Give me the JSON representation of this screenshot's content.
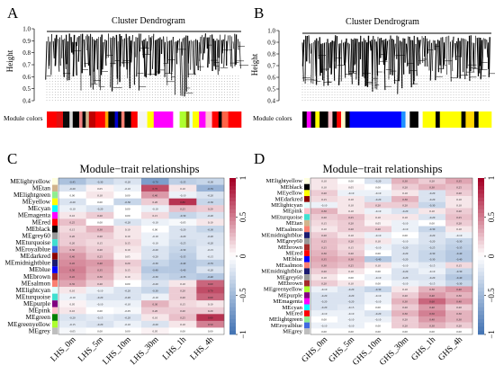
{
  "figure": {
    "panels": [
      {
        "letter": "A",
        "title": "Cluster Dendrogram",
        "ylabel": "Height",
        "yticks": [
          "0.4",
          "0.5",
          "0.6",
          "0.7",
          "0.8",
          "0.9",
          "1.0"
        ],
        "colorbar_label": "Module colors",
        "colorbar": [
          {
            "color": "#ff0000",
            "w": 3
          },
          {
            "color": "#e01010",
            "w": 2
          },
          {
            "color": "#0b0b0b",
            "w": 2
          },
          {
            "color": "#d9d9d9",
            "w": 1
          },
          {
            "color": "#000000",
            "w": 2
          },
          {
            "color": "#f08080",
            "w": 1
          },
          {
            "color": "#000000",
            "w": 1
          },
          {
            "color": "#d2b48c",
            "w": 1
          },
          {
            "color": "#c00000",
            "w": 2
          },
          {
            "color": "#ff0000",
            "w": 3
          },
          {
            "color": "#ffa500",
            "w": 1
          },
          {
            "color": "#000000",
            "w": 2
          },
          {
            "color": "#0000cd",
            "w": 1
          },
          {
            "color": "#000000",
            "w": 1
          },
          {
            "color": "#fa8072",
            "w": 1
          },
          {
            "color": "#000000",
            "w": 2
          },
          {
            "color": "#ff0000",
            "w": 2
          },
          {
            "color": "#f5f5f5",
            "w": 3
          },
          {
            "color": "#ffff00",
            "w": 2
          },
          {
            "color": "#ff00ff",
            "w": 6
          },
          {
            "color": "#ffffff",
            "w": 2
          },
          {
            "color": "#adff2f",
            "w": 2
          },
          {
            "color": "#808000",
            "w": 1
          },
          {
            "color": "#e0ffff",
            "w": 1
          },
          {
            "color": "#ffff00",
            "w": 2
          },
          {
            "color": "#ff00ff",
            "w": 2
          },
          {
            "color": "#ffc0cb",
            "w": 2
          },
          {
            "color": "#ff0000",
            "w": 2
          },
          {
            "color": "#000000",
            "w": 1
          },
          {
            "color": "#ff6347",
            "w": 2
          },
          {
            "color": "#ff0000",
            "w": 4
          }
        ]
      },
      {
        "letter": "B",
        "title": "Cluster Dendrogram",
        "ylabel": "Height",
        "yticks": [
          "0.4",
          "0.5",
          "0.6",
          "0.7",
          "0.8",
          "0.9",
          "1.0"
        ],
        "colorbar_label": "Module colors",
        "colorbar": [
          {
            "color": "#000000",
            "w": 1
          },
          {
            "color": "#ff00ff",
            "w": 1
          },
          {
            "color": "#000000",
            "w": 1
          },
          {
            "color": "#ffff00",
            "w": 1
          },
          {
            "color": "#000000",
            "w": 2
          },
          {
            "color": "#ffc0cb",
            "w": 1
          },
          {
            "color": "#000000",
            "w": 1
          },
          {
            "color": "#ff0000",
            "w": 1
          },
          {
            "color": "#fffacd",
            "w": 1
          },
          {
            "color": "#000000",
            "w": 1
          },
          {
            "color": "#0000ff",
            "w": 12
          },
          {
            "color": "#1e90ff",
            "w": 1
          },
          {
            "color": "#f5f5f5",
            "w": 1
          },
          {
            "color": "#000000",
            "w": 2
          },
          {
            "color": "#ffffff",
            "w": 1
          },
          {
            "color": "#ffff00",
            "w": 3
          },
          {
            "color": "#000000",
            "w": 1
          },
          {
            "color": "#ffff00",
            "w": 5
          },
          {
            "color": "#000000",
            "w": 1
          },
          {
            "color": "#ffd700",
            "w": 2
          },
          {
            "color": "#000000",
            "w": 1
          },
          {
            "color": "#ffff00",
            "w": 3
          }
        ]
      }
    ],
    "heatmaps": [
      {
        "letter": "C",
        "title": "Module−trait relationships",
        "modules": [
          "MElightyellow",
          "MEtan",
          "MElightgreen",
          "MEyellow",
          "MEcyan",
          "MEmagenta",
          "MEred",
          "MEblack",
          "MEgrey60",
          "MEturquoise",
          "MEroyalblue",
          "MEdarkred",
          "MEmidnightblue",
          "MEblue",
          "MEbrown",
          "MEsalmon",
          "MElightcyan",
          "MEturquoise",
          "MEpurple",
          "MEpink",
          "MEgreen",
          "MEgreenyellow",
          "MEgrey"
        ],
        "module_colors": [
          "#ffffe0",
          "#d2b48c",
          "#90ee90",
          "#ffff00",
          "#00ffff",
          "#ff00ff",
          "#ff0000",
          "#000000",
          "#999999",
          "#40e0d0",
          "#4169e1",
          "#8b0000",
          "#191970",
          "#0000ff",
          "#a52a2a",
          "#fa8072",
          "#e0ffff",
          "#40e0d0",
          "#800080",
          "#ffc0cb",
          "#008000",
          "#adff2f",
          "#bebebe"
        ],
        "traits": [
          "LHS_0m",
          "LHS_5m",
          "LHS_10m",
          "LHS_30m",
          "LHS_1h",
          "LHS_4h"
        ],
        "values": [
          [
            -0.45,
            -0.3,
            -0.2,
            -0.7,
            -0.35,
            -0.3
          ],
          [
            -0.2,
            0.05,
            -0.1,
            0.7,
            0.1,
            -0.55
          ],
          [
            0.0,
            0.1,
            0.0,
            0.4,
            -0.1,
            -0.2
          ],
          [
            -0.2,
            0.0,
            -0.3,
            0.2,
            0.8,
            -0.3
          ],
          [
            -0.1,
            -0.2,
            0.0,
            -0.1,
            0.25,
            0.2
          ],
          [
            0.1,
            0.2,
            0.0,
            0.15,
            -0.3,
            -0.2
          ],
          [
            0.25,
            0.0,
            -0.2,
            -0.1,
            -0.05,
            0.1
          ],
          [
            0.15,
            0.3,
            0.1,
            0.0,
            -0.2,
            -0.3
          ],
          [
            0.2,
            0.2,
            0.1,
            -0.1,
            -0.2,
            -0.2
          ],
          [
            0.2,
            0.15,
            0.15,
            -0.1,
            -0.25,
            -0.2
          ],
          [
            0.3,
            0.2,
            0.1,
            -0.2,
            -0.3,
            -0.15
          ],
          [
            0.4,
            0.25,
            0.05,
            -0.2,
            -0.35,
            -0.15
          ],
          [
            0.45,
            0.4,
            0.2,
            -0.3,
            -0.4,
            -0.35
          ],
          [
            0.5,
            0.35,
            0.15,
            -0.4,
            -0.4,
            -0.2
          ],
          [
            0.45,
            0.3,
            0.1,
            -0.3,
            -0.35,
            -0.4
          ],
          [
            0.35,
            0.2,
            0.0,
            -0.2,
            0.1,
            0.6
          ],
          [
            0.1,
            -0.1,
            -0.2,
            -0.3,
            0.2,
            0.7
          ],
          [
            -0.1,
            -0.2,
            -0.2,
            -0.1,
            0.2,
            0.6
          ],
          [
            0.05,
            -0.1,
            -0.1,
            0.3,
            0.15,
            0.1
          ],
          [
            0.1,
            0.0,
            -0.05,
            0.2,
            0.2,
            0.2
          ],
          [
            -0.2,
            -0.15,
            -0.2,
            0.1,
            0.25,
            0.8
          ],
          [
            -0.15,
            -0.2,
            -0.1,
            -0.2,
            0.1,
            0.5
          ],
          [
            -0.05,
            0.0,
            0.0,
            0.05,
            0.0,
            0.0
          ]
        ],
        "scale_ticks": [
          "1",
          "0.5",
          "0",
          "−0.5",
          "−1"
        ]
      },
      {
        "letter": "D",
        "title": "Module−trait relationships",
        "modules": [
          "MElightyellow",
          "MEblack",
          "MEyellow",
          "MEdarkred",
          "MElightcyan",
          "MEpink",
          "MEturquoise",
          "MEtan",
          "MEsalmon",
          "MEmidnightblue",
          "MEgrey60",
          "MEbrown",
          "MEred",
          "MEblue",
          "MEsalmon",
          "MEmidnightblue",
          "MEgrey60",
          "MEbrown",
          "MEgreenyellow",
          "MEpurple",
          "MEmagenta",
          "MEcyan",
          "MEred",
          "MElightgreen",
          "MEroyalblue",
          "MEgrey"
        ],
        "module_colors": [
          "#ffffe0",
          "#000000",
          "#ffff00",
          "#8b0000",
          "#e0ffff",
          "#ffc0cb",
          "#40e0d0",
          "#d2b48c",
          "#fa8072",
          "#191970",
          "#999999",
          "#a52a2a",
          "#ff0000",
          "#0000ff",
          "#fa8072",
          "#191970",
          "#999999",
          "#a52a2a",
          "#adff2f",
          "#800080",
          "#ff00ff",
          "#00ffff",
          "#ff0000",
          "#90ee90",
          "#4169e1",
          "#bebebe"
        ],
        "traits": [
          "GHS_0m",
          "GHS_5m",
          "GHS_10m",
          "GHS_30m",
          "GHS_1h",
          "GHS_4h"
        ],
        "values": [
          [
            0.1,
            0.0,
            -0.2,
            0.3,
            0.2,
            0.35
          ],
          [
            0.1,
            0.05,
            0.0,
            0.2,
            0.3,
            0.25
          ],
          [
            0.2,
            -0.1,
            -0.1,
            0.1,
            -0.2,
            0.2
          ],
          [
            0.15,
            0.1,
            -0.2,
            0.3,
            -0.2,
            0.1
          ],
          [
            -0.1,
            0.1,
            0.2,
            0.2,
            -0.3,
            0.1
          ],
          [
            0.3,
            0.1,
            -0.1,
            -0.2,
            0.1,
            0.2
          ],
          [
            0.2,
            0.25,
            0.1,
            0.1,
            -0.2,
            0.25
          ],
          [
            0.15,
            0.2,
            0.05,
            -0.1,
            0.0,
            0.2
          ],
          [
            0.1,
            0.2,
            0.2,
            -0.1,
            -0.3,
            0.1
          ],
          [
            0.2,
            0.1,
            -0.1,
            0.0,
            -0.2,
            -0.1
          ],
          [
            0.25,
            0.2,
            0.1,
            -0.1,
            -0.2,
            -0.3
          ],
          [
            0.25,
            0.15,
            -0.1,
            -0.2,
            -0.25,
            -0.35
          ],
          [
            0.3,
            0.2,
            0.0,
            -0.2,
            -0.3,
            -0.4
          ],
          [
            0.35,
            0.3,
            -0.4,
            -0.2,
            -0.3,
            -0.4
          ],
          [
            0.3,
            0.25,
            0.1,
            -0.1,
            -0.15,
            0.15
          ],
          [
            0.2,
            0.1,
            0.0,
            -0.2,
            -0.1,
            -0.3
          ],
          [
            0.1,
            0.0,
            -0.1,
            -0.2,
            -0.2,
            -0.4
          ],
          [
            0.2,
            0.1,
            0.0,
            -0.1,
            -0.15,
            -0.3
          ],
          [
            -0.1,
            -0.2,
            -0.3,
            0.1,
            0.3,
            0.4
          ],
          [
            -0.2,
            -0.2,
            -0.1,
            0.2,
            0.4,
            0.3
          ],
          [
            -0.2,
            -0.2,
            -0.1,
            0.3,
            0.6,
            0.4
          ],
          [
            -0.2,
            -0.15,
            0.0,
            0.2,
            0.4,
            0.2
          ],
          [
            -0.1,
            -0.1,
            -0.2,
            0.3,
            0.5,
            0.3
          ],
          [
            0.0,
            -0.1,
            -0.1,
            0.2,
            0.4,
            0.3
          ],
          [
            -0.1,
            -0.1,
            0.0,
            0.2,
            0.3,
            0.2
          ],
          [
            0.0,
            0.0,
            0.0,
            0.0,
            0.0,
            0.0
          ]
        ],
        "scale_ticks": [
          "1",
          "0.5",
          "0",
          "−0.5",
          "−1"
        ]
      }
    ]
  }
}
